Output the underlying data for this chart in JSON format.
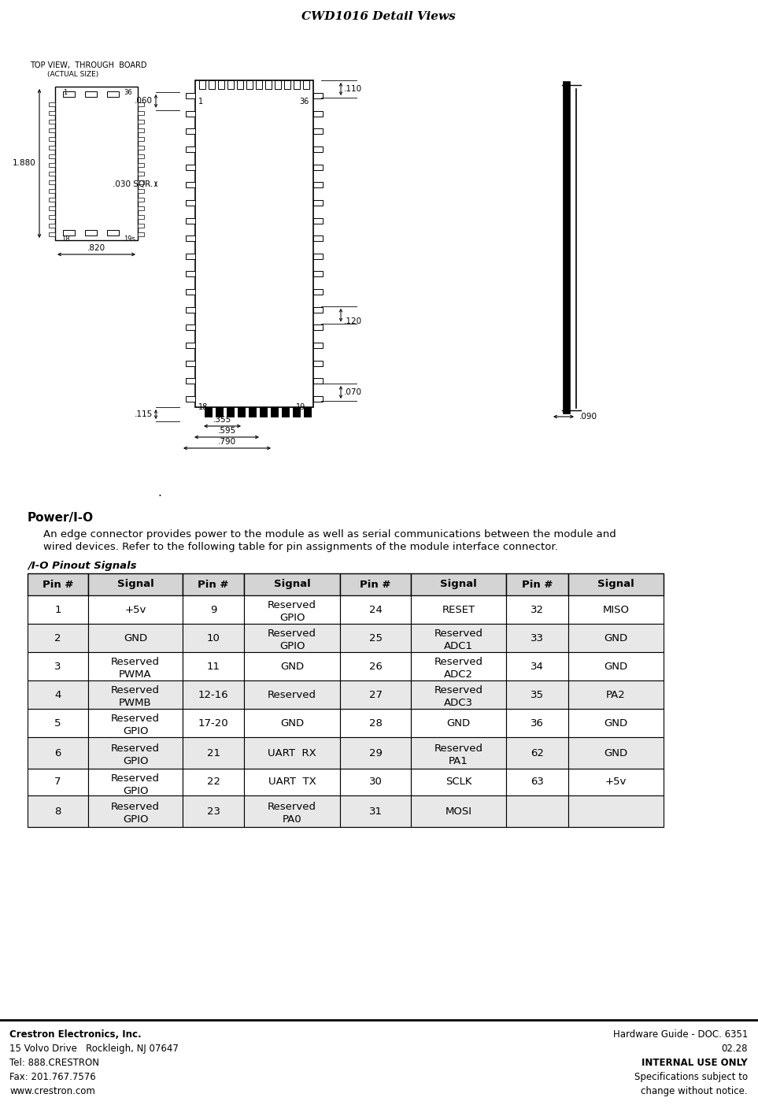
{
  "title": "CWD1016 Detail Views",
  "bg_color": "#ffffff",
  "footer_left": [
    "Crestron Electronics, Inc.",
    "15 Volvo Drive   Rockleigh, NJ 07647",
    "Tel: 888.CRESTRON",
    "Fax: 201.767.7576",
    "www.crestron.com"
  ],
  "footer_right": [
    "Hardware Guide - DOC. 6351",
    "02.28",
    "INTERNAL USE ONLY",
    "Specifications subject to",
    "change without notice."
  ],
  "power_heading": "Power/I-O",
  "power_desc1": "An edge connector provides power to the module as well as serial communications between the module and",
  "power_desc2": "wired devices. Refer to the following table for pin assignments of the module interface connector.",
  "table_heading": "/I-O Pinout Signals",
  "table_headers": [
    "Pin #",
    "Signal",
    "Pin #",
    "Signal",
    "Pin #",
    "Signal",
    "Pin #",
    "Signal"
  ],
  "table_rows": [
    [
      "1",
      "+5v",
      "9",
      "Reserved\nGPIO",
      "24",
      "RESET",
      "32",
      "MISO"
    ],
    [
      "2",
      "GND",
      "10",
      "Reserved\nGPIO",
      "25",
      "Reserved\nADC1",
      "33",
      "GND"
    ],
    [
      "3",
      "Reserved\nPWMA",
      "11",
      "GND",
      "26",
      "Reserved\nADC2",
      "34",
      "GND"
    ],
    [
      "4",
      "Reserved\nPWMB",
      "12-16",
      "Reserved",
      "27",
      "Reserved\nADC3",
      "35",
      "PA2"
    ],
    [
      "5",
      "Reserved\nGPIO",
      "17-20",
      "GND",
      "28",
      "GND",
      "36",
      "GND"
    ],
    [
      "6",
      "Reserved\nGPIO",
      "21",
      "UART  RX",
      "29",
      "Reserved\nPA1",
      "62",
      "GND"
    ],
    [
      "7",
      "Reserved\nGPIO",
      "22",
      "UART  TX",
      "30",
      "SCLK",
      "63",
      "+5v"
    ],
    [
      "8",
      "Reserved\nGPIO",
      "23",
      "Reserved\nPA0",
      "31",
      "MOSI",
      "",
      ""
    ]
  ],
  "row_shading": [
    false,
    true,
    false,
    true,
    false,
    true,
    false,
    true
  ]
}
